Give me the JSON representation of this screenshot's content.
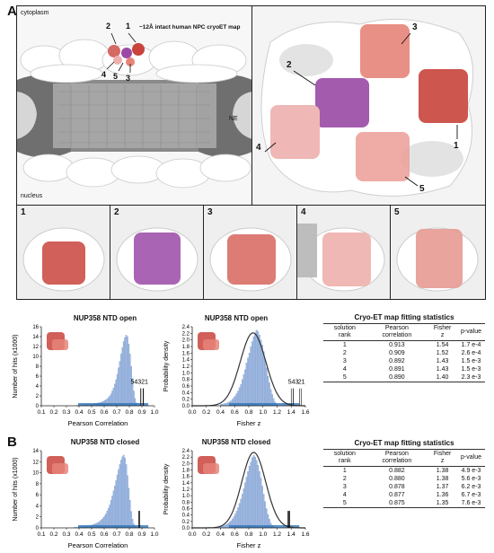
{
  "panelA": {
    "letter": "A",
    "overview": {
      "cytoplasm": "cytoplasm",
      "nucleus": "nucleus",
      "ne": "NE",
      "map_title": "~12Å intact human NPC cryoET map",
      "markers": [
        "2",
        "1",
        "4",
        "5",
        "3"
      ]
    },
    "zoom_markers": [
      "3",
      "2",
      "1",
      "4",
      "5"
    ],
    "thumbnails": [
      "1",
      "2",
      "3",
      "4",
      "5"
    ],
    "chart_open_hits": {
      "title": "NUP358 NTD open",
      "ylabel": "Number of hits (x1000)",
      "xlabel": "Pearson Correlation",
      "rank_labels": "54321"
    },
    "chart_open_fisher": {
      "title": "NUP358 NTD open",
      "ylabel": "Probability density",
      "xlabel": "Fisher z",
      "rank_labels": [
        "5",
        "4",
        "3",
        "2",
        "1"
      ]
    },
    "table": {
      "title": "Cryo-ET map fitting statistics",
      "headers": [
        "solution rank",
        "Pearson correlation",
        "Fisher z",
        "p-value"
      ],
      "rows": [
        [
          "1",
          "0.913",
          "1.54",
          "1.7 e-4"
        ],
        [
          "2",
          "0.909",
          "1.52",
          "2.6 e-4"
        ],
        [
          "3",
          "0.892",
          "1.43",
          "1.5 e-3"
        ],
        [
          "4",
          "0.891",
          "1.43",
          "1.5 e-3"
        ],
        [
          "5",
          "0.890",
          "1.40",
          "2.3 e-3"
        ]
      ]
    }
  },
  "panelB": {
    "letter": "B",
    "chart_closed_hits": {
      "title": "NUP358 NTD closed",
      "ylabel": "Number of hits (x1000)",
      "xlabel": "Pearson Correlation"
    },
    "chart_closed_fisher": {
      "title": "NUP358 NTD closed",
      "ylabel": "Probability density",
      "xlabel": "Fisher z"
    },
    "table": {
      "title": "Cryo-ET map fitting statistics",
      "headers": [
        "solution rank",
        "Pearson correlation",
        "Fisher z",
        "p-value"
      ],
      "rows": [
        [
          "1",
          "0.882",
          "1.38",
          "4.9 e-3"
        ],
        [
          "2",
          "0.880",
          "1.38",
          "5.6 e-3"
        ],
        [
          "3",
          "0.878",
          "1.37",
          "6.2 e-3"
        ],
        [
          "4",
          "0.877",
          "1.36",
          "6.7 e-3"
        ],
        [
          "5",
          "0.875",
          "1.35",
          "7.6 e-3"
        ]
      ]
    }
  },
  "chart_data": [
    {
      "type": "bar",
      "title": "NUP358 NTD open",
      "xlabel": "Pearson Correlation",
      "ylabel": "Number of hits (x1000)",
      "xlim": [
        0.1,
        1.0
      ],
      "ylim": [
        0,
        16
      ],
      "xticks": [
        "0.1",
        "0.2",
        "0.3",
        "0.4",
        "0.5",
        "0.6",
        "0.7",
        "0.8",
        "0.9",
        "1.0"
      ],
      "yticks": [
        "0",
        "2",
        "4",
        "6",
        "8",
        "10",
        "12",
        "14",
        "16"
      ],
      "bin_start": 0.38,
      "bin_width": 0.01,
      "values": [
        0.1,
        0.1,
        0.1,
        0.1,
        0.1,
        0.1,
        0.2,
        0.2,
        0.2,
        0.3,
        0.3,
        0.3,
        0.3,
        0.4,
        0.4,
        0.5,
        0.5,
        0.6,
        0.6,
        0.7,
        0.8,
        0.9,
        1.1,
        1.2,
        1.4,
        1.7,
        2.0,
        2.4,
        3.0,
        3.6,
        4.4,
        5.3,
        6.4,
        7.7,
        9.0,
        10.5,
        11.8,
        13.0,
        13.8,
        14.3,
        14.0,
        12.5,
        10.5,
        8.0,
        5.5,
        3.0,
        1.5,
        0.6,
        0.2,
        0.1
      ],
      "highlight_x": [
        0.89,
        0.891,
        0.892,
        0.909,
        0.913
      ]
    },
    {
      "type": "bar",
      "title": "NUP358 NTD open",
      "xlabel": "Fisher z",
      "ylabel": "Probability density",
      "xlim": [
        0.0,
        1.6
      ],
      "ylim": [
        0,
        2.4
      ],
      "xticks": [
        "0.0",
        "0.2",
        "0.4",
        "0.6",
        "0.8",
        "1.0",
        "1.2",
        "1.4",
        "1.6"
      ],
      "yticks": [
        "0.0",
        "0.2",
        "0.4",
        "0.6",
        "0.8",
        "1.0",
        "1.2",
        "1.4",
        "1.6",
        "1.8",
        "2.0",
        "2.2",
        "2.4"
      ],
      "bin_start": 0.4,
      "bin_width": 0.02,
      "values": [
        0.05,
        0.05,
        0.06,
        0.07,
        0.08,
        0.1,
        0.12,
        0.15,
        0.2,
        0.25,
        0.3,
        0.37,
        0.45,
        0.55,
        0.65,
        0.8,
        0.95,
        1.1,
        1.3,
        1.45,
        1.6,
        1.8,
        1.95,
        2.1,
        2.2,
        2.3,
        2.25,
        2.15,
        2.0,
        1.85,
        1.65,
        1.4,
        1.15,
        0.9,
        0.7,
        0.5,
        0.35,
        0.22,
        0.12,
        0.06,
        0.03,
        0.01
      ],
      "fit_mean": 0.86,
      "fit_sd": 0.18,
      "highlight_x": [
        1.4,
        1.43,
        1.43,
        1.52,
        1.54
      ]
    },
    {
      "type": "bar",
      "title": "NUP358 NTD closed",
      "xlabel": "Pearson Correlation",
      "ylabel": "Number of hits (x1000)",
      "xlim": [
        0.1,
        1.0
      ],
      "ylim": [
        0,
        14
      ],
      "xticks": [
        "0.1",
        "0.2",
        "0.3",
        "0.4",
        "0.5",
        "0.6",
        "0.7",
        "0.8",
        "0.9",
        "1.0"
      ],
      "yticks": [
        "0",
        "2",
        "4",
        "6",
        "8",
        "10",
        "12",
        "14"
      ],
      "bin_start": 0.36,
      "bin_width": 0.01,
      "values": [
        0.1,
        0.1,
        0.1,
        0.1,
        0.2,
        0.2,
        0.2,
        0.3,
        0.3,
        0.3,
        0.3,
        0.4,
        0.4,
        0.5,
        0.5,
        0.6,
        0.7,
        0.8,
        0.9,
        1.0,
        1.2,
        1.4,
        1.6,
        1.9,
        2.2,
        2.6,
        3.1,
        3.6,
        4.2,
        5.0,
        5.8,
        6.7,
        7.6,
        8.6,
        9.6,
        10.6,
        11.5,
        12.3,
        12.9,
        13.2,
        12.7,
        11.5,
        9.5,
        7.2,
        5.0,
        3.0,
        1.6,
        0.7,
        0.3,
        0.1
      ],
      "highlight_x": [
        0.875,
        0.877,
        0.878,
        0.88,
        0.882
      ]
    },
    {
      "type": "bar",
      "title": "NUP358 NTD closed",
      "xlabel": "Fisher z",
      "ylabel": "Probability density",
      "xlim": [
        0.0,
        1.6
      ],
      "ylim": [
        0,
        2.4
      ],
      "xticks": [
        "0.0",
        "0.2",
        "0.4",
        "0.6",
        "0.8",
        "1.0",
        "1.2",
        "1.4",
        "1.6"
      ],
      "yticks": [
        "0.0",
        "0.2",
        "0.4",
        "0.6",
        "0.8",
        "1.0",
        "1.2",
        "1.4",
        "1.6",
        "1.8",
        "2.0",
        "2.2",
        "2.4"
      ],
      "bin_start": 0.38,
      "bin_width": 0.02,
      "values": [
        0.04,
        0.05,
        0.06,
        0.07,
        0.09,
        0.11,
        0.14,
        0.18,
        0.22,
        0.28,
        0.35,
        0.43,
        0.52,
        0.63,
        0.76,
        0.9,
        1.05,
        1.22,
        1.4,
        1.58,
        1.75,
        1.92,
        2.05,
        2.18,
        2.25,
        2.2,
        2.1,
        1.95,
        1.75,
        1.55,
        1.3,
        1.05,
        0.82,
        0.6,
        0.42,
        0.27,
        0.15,
        0.08,
        0.04,
        0.02,
        0.01
      ],
      "fit_mean": 0.87,
      "fit_sd": 0.17,
      "highlight_x": [
        1.35,
        1.36,
        1.37,
        1.38,
        1.38
      ]
    }
  ],
  "colors": {
    "bar": "#9fb8e0",
    "bar_edge": "#7f9fd0",
    "rug": "#2f74b8",
    "fit": "#333333",
    "protein_red": "#c8443c",
    "protein_salmon": "#e7847a",
    "protein_pink": "#eeb0ad",
    "protein_purple": "#9a4aa6"
  }
}
